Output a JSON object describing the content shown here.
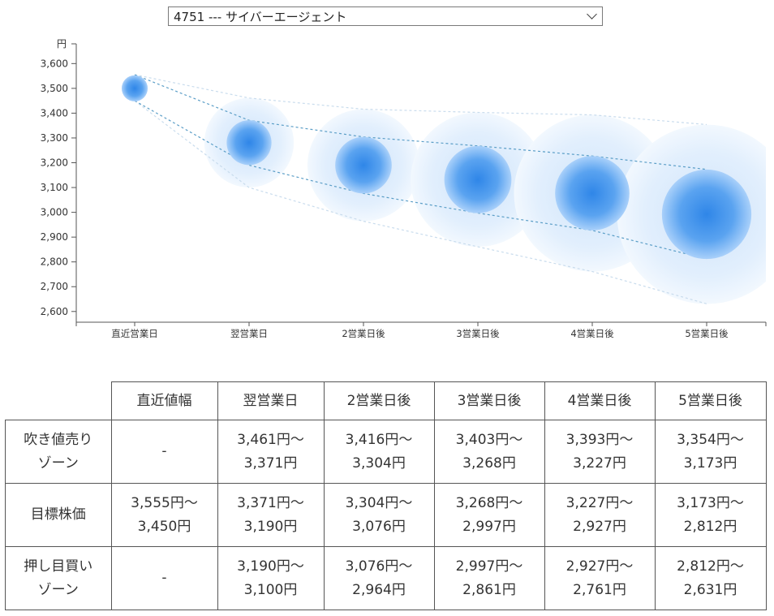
{
  "selector": {
    "value": "4751 --- サイバーエージェント"
  },
  "chart_data": {
    "type": "bubble",
    "y_unit": "円",
    "ylim": [
      2560,
      3660
    ],
    "y_ticks": [
      2600,
      2700,
      2800,
      2900,
      3000,
      3100,
      3200,
      3300,
      3400,
      3500,
      3600
    ],
    "y_tick_labels": [
      "2,600",
      "2,700",
      "2,800",
      "2,900",
      "3,000",
      "3,100",
      "3,200",
      "3,300",
      "3,400",
      "3,500",
      "3,600"
    ],
    "categories": [
      "直近営業日",
      "翌営業日",
      "2営業日後",
      "3営業日後",
      "4営業日後",
      "5営業日後"
    ],
    "center": [
      3500,
      3281,
      3190,
      3132,
      3077,
      2992
    ],
    "target_high": [
      3555,
      3371,
      3304,
      3268,
      3227,
      3173
    ],
    "target_low": [
      3450,
      3190,
      3076,
      2997,
      2927,
      2812
    ],
    "upper_bound": [
      3555,
      3461,
      3416,
      3403,
      3393,
      3354
    ],
    "lower_bound": [
      3450,
      3100,
      2964,
      2861,
      2761,
      2631
    ],
    "colors": {
      "core": "#2f86e8",
      "halo": "#dcebfc",
      "target_line": "#5b9ec7",
      "outer_line": "#c9dced"
    }
  },
  "table": {
    "headers": [
      "",
      "直近値幅",
      "翌営業日",
      "2営業日後",
      "3営業日後",
      "4営業日後",
      "5営業日後"
    ],
    "rows": [
      {
        "label": [
          "吹き値売り",
          "ゾーン"
        ],
        "cells": [
          [
            "-"
          ],
          [
            "3,461円〜",
            "3,371円"
          ],
          [
            "3,416円〜",
            "3,304円"
          ],
          [
            "3,403円〜",
            "3,268円"
          ],
          [
            "3,393円〜",
            "3,227円"
          ],
          [
            "3,354円〜",
            "3,173円"
          ]
        ]
      },
      {
        "label": [
          "目標株価"
        ],
        "cells": [
          [
            "3,555円〜",
            "3,450円"
          ],
          [
            "3,371円〜",
            "3,190円"
          ],
          [
            "3,304円〜",
            "3,076円"
          ],
          [
            "3,268円〜",
            "2,997円"
          ],
          [
            "3,227円〜",
            "2,927円"
          ],
          [
            "3,173円〜",
            "2,812円"
          ]
        ]
      },
      {
        "label": [
          "押し目買い",
          "ゾーン"
        ],
        "cells": [
          [
            "-"
          ],
          [
            "3,190円〜",
            "3,100円"
          ],
          [
            "3,076円〜",
            "2,964円"
          ],
          [
            "2,997円〜",
            "2,861円"
          ],
          [
            "2,927円〜",
            "2,761円"
          ],
          [
            "2,812円〜",
            "2,631円"
          ]
        ]
      }
    ]
  }
}
